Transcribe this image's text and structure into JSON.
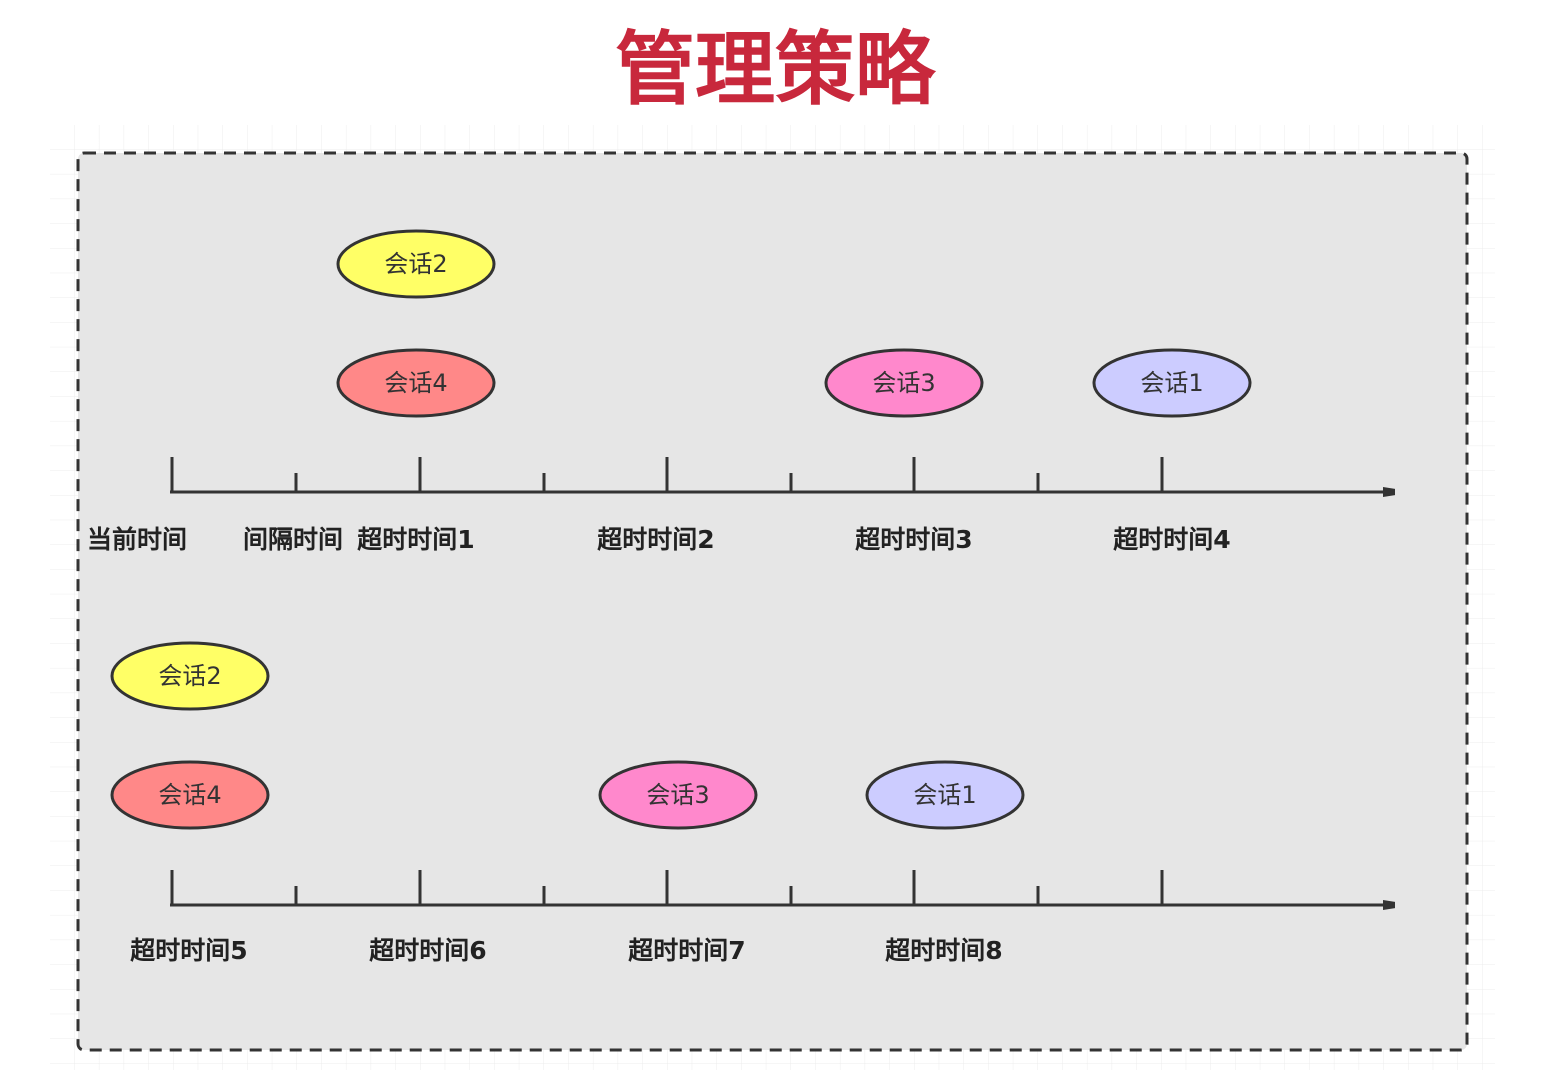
{
  "title": "管理策略",
  "timelines": [
    {
      "labels": [
        "当前时间",
        "间隔时间",
        "超时时间1",
        "超时时间2",
        "超时时间3",
        "超时时间4"
      ],
      "sessions": [
        "会话2",
        "会话4",
        "会话3",
        "会话1"
      ]
    },
    {
      "labels": [
        "超时时间5",
        "超时时间6",
        "超时时间7",
        "超时时间8"
      ],
      "sessions": [
        "会话2",
        "会话4",
        "会话3",
        "会话1"
      ]
    }
  ]
}
